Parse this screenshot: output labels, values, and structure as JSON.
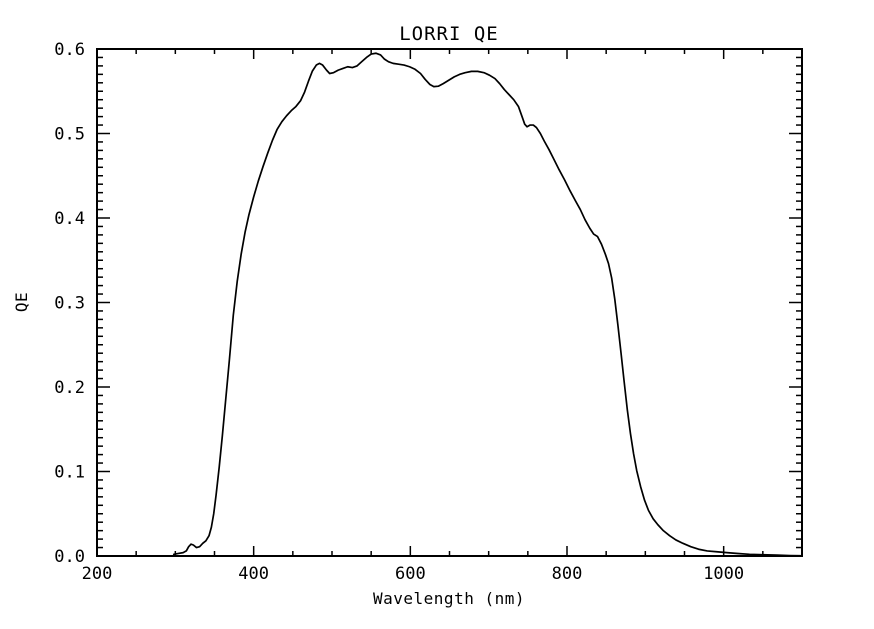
{
  "figure": {
    "background": "#ffffff",
    "axis_color": "#000000"
  },
  "chart_data": {
    "type": "line",
    "title": "LORRI QE",
    "xlabel": "Wavelength (nm)",
    "ylabel": "QE",
    "xlim": [
      200,
      1100
    ],
    "ylim": [
      0.0,
      0.6
    ],
    "grid": false,
    "legend_position": "none",
    "x_major_ticks": [
      200,
      400,
      600,
      800,
      1000
    ],
    "x_tick_labels": [
      "200",
      "400",
      "600",
      "800",
      "1000"
    ],
    "x_minor_step": 50,
    "y_major_ticks": [
      0.0,
      0.1,
      0.2,
      0.3,
      0.4,
      0.5,
      0.6
    ],
    "y_tick_labels": [
      "0.0",
      "0.1",
      "0.2",
      "0.3",
      "0.4",
      "0.5",
      "0.6"
    ],
    "y_minor_step": 0.01,
    "series": [
      {
        "name": "LORRI QE",
        "color": "#000000",
        "points": [
          [
            298,
            0.002
          ],
          [
            304,
            0.003
          ],
          [
            310,
            0.004
          ],
          [
            314,
            0.006
          ],
          [
            317,
            0.011
          ],
          [
            320,
            0.014
          ],
          [
            323,
            0.013
          ],
          [
            327,
            0.01
          ],
          [
            331,
            0.011
          ],
          [
            335,
            0.015
          ],
          [
            339,
            0.018
          ],
          [
            343,
            0.024
          ],
          [
            346,
            0.034
          ],
          [
            349,
            0.05
          ],
          [
            352,
            0.072
          ],
          [
            356,
            0.105
          ],
          [
            360,
            0.142
          ],
          [
            364,
            0.182
          ],
          [
            369,
            0.232
          ],
          [
            374,
            0.285
          ],
          [
            379,
            0.325
          ],
          [
            384,
            0.357
          ],
          [
            389,
            0.383
          ],
          [
            394,
            0.404
          ],
          [
            400,
            0.425
          ],
          [
            406,
            0.444
          ],
          [
            412,
            0.461
          ],
          [
            418,
            0.477
          ],
          [
            424,
            0.492
          ],
          [
            430,
            0.505
          ],
          [
            436,
            0.514
          ],
          [
            442,
            0.521
          ],
          [
            448,
            0.527
          ],
          [
            454,
            0.532
          ],
          [
            460,
            0.539
          ],
          [
            465,
            0.549
          ],
          [
            470,
            0.562
          ],
          [
            475,
            0.574
          ],
          [
            480,
            0.581
          ],
          [
            484,
            0.583
          ],
          [
            488,
            0.581
          ],
          [
            493,
            0.575
          ],
          [
            497,
            0.571
          ],
          [
            502,
            0.572
          ],
          [
            508,
            0.575
          ],
          [
            514,
            0.577
          ],
          [
            520,
            0.579
          ],
          [
            526,
            0.578
          ],
          [
            532,
            0.58
          ],
          [
            538,
            0.585
          ],
          [
            544,
            0.59
          ],
          [
            550,
            0.594
          ],
          [
            556,
            0.595
          ],
          [
            562,
            0.593
          ],
          [
            567,
            0.588
          ],
          [
            572,
            0.585
          ],
          [
            578,
            0.583
          ],
          [
            585,
            0.582
          ],
          [
            592,
            0.581
          ],
          [
            599,
            0.579
          ],
          [
            606,
            0.576
          ],
          [
            613,
            0.571
          ],
          [
            619,
            0.564
          ],
          [
            625,
            0.558
          ],
          [
            630,
            0.5555
          ],
          [
            636,
            0.556
          ],
          [
            642,
            0.559
          ],
          [
            649,
            0.563
          ],
          [
            656,
            0.567
          ],
          [
            663,
            0.57
          ],
          [
            670,
            0.572
          ],
          [
            678,
            0.5735
          ],
          [
            686,
            0.5735
          ],
          [
            694,
            0.572
          ],
          [
            701,
            0.569
          ],
          [
            708,
            0.565
          ],
          [
            714,
            0.559
          ],
          [
            720,
            0.552
          ],
          [
            726,
            0.546
          ],
          [
            732,
            0.54
          ],
          [
            738,
            0.532
          ],
          [
            743,
            0.519
          ],
          [
            746,
            0.511
          ],
          [
            749,
            0.508
          ],
          [
            753,
            0.51
          ],
          [
            757,
            0.51
          ],
          [
            761,
            0.507
          ],
          [
            766,
            0.5
          ],
          [
            771,
            0.491
          ],
          [
            777,
            0.481
          ],
          [
            783,
            0.47
          ],
          [
            790,
            0.457
          ],
          [
            797,
            0.445
          ],
          [
            804,
            0.432
          ],
          [
            811,
            0.42
          ],
          [
            817,
            0.41
          ],
          [
            823,
            0.398
          ],
          [
            829,
            0.388
          ],
          [
            834,
            0.381
          ],
          [
            839,
            0.378
          ],
          [
            844,
            0.369
          ],
          [
            849,
            0.357
          ],
          [
            853,
            0.346
          ],
          [
            857,
            0.329
          ],
          [
            861,
            0.304
          ],
          [
            865,
            0.273
          ],
          [
            869,
            0.24
          ],
          [
            873,
            0.206
          ],
          [
            877,
            0.173
          ],
          [
            881,
            0.145
          ],
          [
            885,
            0.121
          ],
          [
            889,
            0.101
          ],
          [
            894,
            0.082
          ],
          [
            899,
            0.066
          ],
          [
            904,
            0.054
          ],
          [
            910,
            0.044
          ],
          [
            916,
            0.037
          ],
          [
            923,
            0.03
          ],
          [
            931,
            0.024
          ],
          [
            939,
            0.019
          ],
          [
            948,
            0.015
          ],
          [
            958,
            0.011
          ],
          [
            968,
            0.008
          ],
          [
            979,
            0.006
          ],
          [
            991,
            0.005
          ],
          [
            1004,
            0.004
          ],
          [
            1018,
            0.003
          ],
          [
            1033,
            0.002
          ],
          [
            1050,
            0.0015
          ],
          [
            1068,
            0.001
          ],
          [
            1085,
            0.0005
          ],
          [
            1098,
            0.0003
          ]
        ]
      }
    ]
  }
}
